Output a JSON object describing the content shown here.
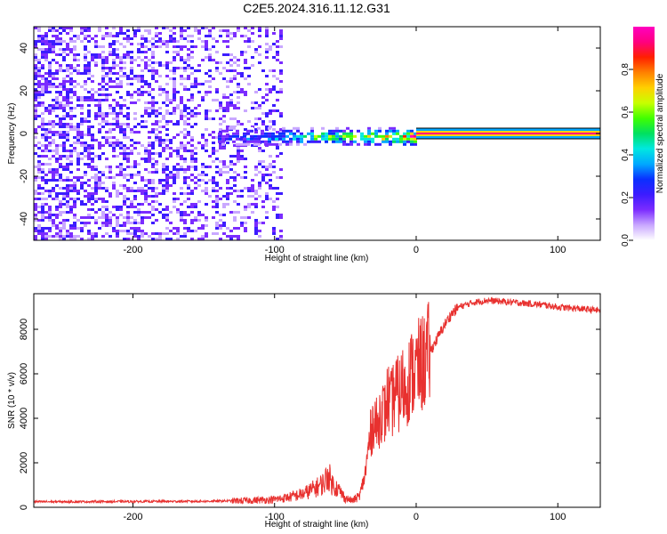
{
  "title": "C2E5.2024.316.11.12.G31",
  "colors": {
    "snr_line": "#e8312f",
    "colorbar": [
      "#ffffff",
      "#c9a8ff",
      "#7b2cff",
      "#3c1cff",
      "#0a30ff",
      "#00a8ff",
      "#00e8e0",
      "#00e060",
      "#40ff00",
      "#c8ff00",
      "#ffd000",
      "#ff8000",
      "#ff2000",
      "#ff0080",
      "#ff00c0"
    ]
  },
  "chart_data": [
    {
      "type": "heatmap",
      "xlabel": "Height of straight line (km)",
      "ylabel": "Frequency (Hz)",
      "xlim": [
        -270,
        130
      ],
      "ylim": [
        -50,
        50
      ],
      "x_ticks": [
        -200,
        -100,
        0,
        100
      ],
      "y_ticks": [
        -40,
        -20,
        0,
        20,
        40
      ],
      "colorbar": {
        "label": "Normalized spectral amplitude",
        "range": [
          0,
          1
        ],
        "ticks": [
          "0.0",
          "0.2",
          "0.4",
          "0.6",
          "0.8"
        ]
      },
      "regions": [
        {
          "description": "scattered low-amplitude noise",
          "x": [
            -270,
            -95
          ],
          "freq": [
            -50,
            50
          ],
          "amplitude": 0.15
        },
        {
          "description": "concentrated signal band",
          "x": [
            -140,
            0
          ],
          "freq": [
            -5,
            3
          ],
          "amplitude": 0.5
        },
        {
          "description": "steady carrier line",
          "x": [
            0,
            130
          ],
          "freq": [
            0,
            0
          ],
          "amplitude": 0.9
        }
      ]
    },
    {
      "type": "line",
      "xlabel": "Height of straight line (km)",
      "ylabel": "SNR (10 * v/v)",
      "xlim": [
        -270,
        130
      ],
      "ylim": [
        0,
        9600
      ],
      "x_ticks": [
        -200,
        -100,
        0,
        100
      ],
      "y_ticks": [
        0,
        2000,
        4000,
        6000,
        8000
      ],
      "series": [
        {
          "x": [
            -270,
            -250,
            -200,
            -150,
            -120,
            -100,
            -90,
            -80,
            -70,
            -65,
            -62,
            -60,
            -55,
            -50,
            -45,
            -40,
            -36,
            -33,
            -30,
            -27,
            -25,
            -22,
            -20,
            -18,
            -15,
            -12,
            -10,
            -8,
            -5,
            -3,
            0,
            5,
            10,
            15,
            20,
            25,
            30,
            40,
            50,
            60,
            70,
            80,
            90,
            100,
            110,
            120,
            130
          ],
          "y": [
            250,
            250,
            260,
            270,
            300,
            350,
            450,
            600,
            900,
            1100,
            1500,
            1100,
            800,
            400,
            300,
            500,
            1500,
            3000,
            4000,
            3500,
            4500,
            4200,
            5000,
            4500,
            5200,
            5000,
            5500,
            5200,
            5800,
            6000,
            6200,
            6500,
            7000,
            7600,
            8200,
            8700,
            9000,
            9200,
            9300,
            9250,
            9200,
            9150,
            9100,
            9000,
            8950,
            8900,
            8850
          ]
        }
      ]
    }
  ]
}
